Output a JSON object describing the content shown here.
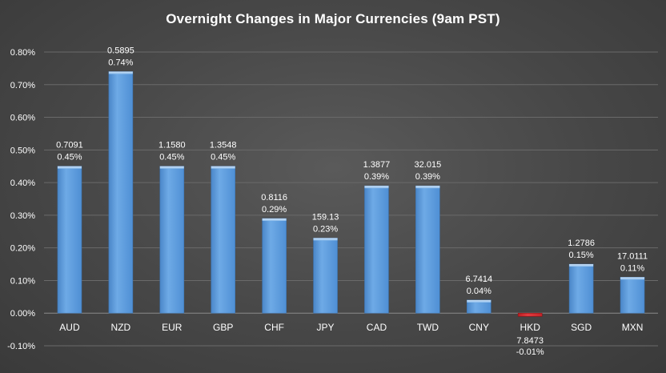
{
  "chart_data": {
    "type": "bar",
    "title": "Overnight Changes in Major Currencies (9am PST)",
    "categories": [
      "AUD",
      "NZD",
      "EUR",
      "GBP",
      "CHF",
      "JPY",
      "CAD",
      "TWD",
      "CNY",
      "HKD",
      "SGD",
      "MXN"
    ],
    "values": [
      0.45,
      0.74,
      0.45,
      0.45,
      0.29,
      0.23,
      0.39,
      0.39,
      0.04,
      -0.01,
      0.15,
      0.11
    ],
    "value_labels": [
      "0.45%",
      "0.74%",
      "0.45%",
      "0.45%",
      "0.29%",
      "0.23%",
      "0.39%",
      "0.39%",
      "0.04%",
      "-0.01%",
      "0.15%",
      "0.11%"
    ],
    "rate_labels": [
      "0.7091",
      "0.5895",
      "1.1580",
      "1.3548",
      "0.8116",
      "159.13",
      "1.3877",
      "32.015",
      "6.7414",
      "7.8473",
      "1.2786",
      "17.0111"
    ],
    "yticks": [
      -0.1,
      0,
      0.1,
      0.2,
      0.3,
      0.4,
      0.5,
      0.6,
      0.7,
      0.8
    ],
    "ytick_labels": [
      "-0.10%",
      "0.00%",
      "0.10%",
      "0.20%",
      "0.30%",
      "0.40%",
      "0.50%",
      "0.60%",
      "0.70%",
      "0.80%"
    ],
    "ylim": [
      -0.1,
      0.8
    ],
    "xlabel": "",
    "ylabel": "",
    "grid": true,
    "colors": {
      "positive": "#5b9bd5",
      "negative": "#d9262b"
    }
  }
}
